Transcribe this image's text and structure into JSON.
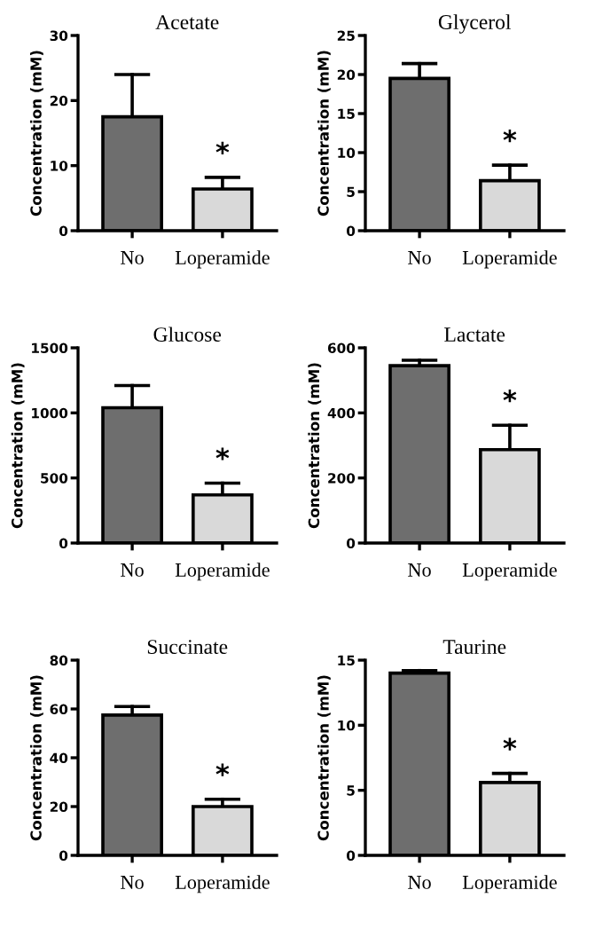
{
  "chart_data": [
    {
      "type": "bar",
      "title": "Acetate",
      "ylabel": "Concentration (mM)",
      "categories": [
        "No",
        "Loperamide"
      ],
      "values": [
        17.5,
        6.4
      ],
      "errors": [
        [
          17.5,
          24
        ],
        [
          6.4,
          8.2
        ]
      ],
      "colors": [
        "#6e6e6e",
        "#d9d9d9"
      ],
      "ylim": [
        0,
        30
      ],
      "yticks": [
        0,
        10,
        20,
        30
      ],
      "annotations": [
        "*"
      ]
    },
    {
      "type": "bar",
      "title": "Glycerol",
      "ylabel": "Concentration (mM)",
      "categories": [
        "No",
        "Loperamide"
      ],
      "values": [
        19.5,
        6.4
      ],
      "errors": [
        [
          19.5,
          21.4
        ],
        [
          6.4,
          8.4
        ]
      ],
      "colors": [
        "#6e6e6e",
        "#d9d9d9"
      ],
      "ylim": [
        0,
        25
      ],
      "yticks": [
        0,
        5,
        10,
        15,
        20,
        25
      ],
      "annotations": [
        "*"
      ]
    },
    {
      "type": "bar",
      "title": "Glucose",
      "ylabel": "Concentration (mM)",
      "categories": [
        "No",
        "Loperamide"
      ],
      "values": [
        1040,
        370
      ],
      "errors": [
        [
          1040,
          1210
        ],
        [
          370,
          460
        ]
      ],
      "colors": [
        "#6e6e6e",
        "#d9d9d9"
      ],
      "ylim": [
        0,
        1500
      ],
      "yticks": [
        0,
        500,
        1000,
        1500
      ],
      "annotations": [
        "*"
      ]
    },
    {
      "type": "bar",
      "title": "Lactate",
      "ylabel": "Concentration (mM)",
      "categories": [
        "No",
        "Loperamide"
      ],
      "values": [
        545,
        287
      ],
      "errors": [
        [
          545,
          562
        ],
        [
          287,
          362
        ]
      ],
      "colors": [
        "#6e6e6e",
        "#d9d9d9"
      ],
      "ylim": [
        0,
        600
      ],
      "yticks": [
        0,
        200,
        400,
        600
      ],
      "annotations": [
        "*"
      ]
    },
    {
      "type": "bar",
      "title": "Succinate",
      "ylabel": "Concentration (mM)",
      "categories": [
        "No",
        "Loperamide"
      ],
      "values": [
        57.5,
        20
      ],
      "errors": [
        [
          57.5,
          61
        ],
        [
          20,
          23
        ]
      ],
      "colors": [
        "#6e6e6e",
        "#d9d9d9"
      ],
      "ylim": [
        0,
        80
      ],
      "yticks": [
        0,
        20,
        40,
        60,
        80
      ],
      "annotations": [
        "*"
      ]
    },
    {
      "type": "bar",
      "title": "Taurine",
      "ylabel": "Concentration (mM)",
      "categories": [
        "No",
        "Loperamide"
      ],
      "values": [
        14,
        5.6
      ],
      "errors": [
        [
          14,
          14.2
        ],
        [
          5.6,
          6.3
        ]
      ],
      "colors": [
        "#6e6e6e",
        "#d9d9d9"
      ],
      "ylim": [
        0,
        15
      ],
      "yticks": [
        0,
        5,
        10,
        15
      ],
      "annotations": [
        "*"
      ]
    }
  ]
}
